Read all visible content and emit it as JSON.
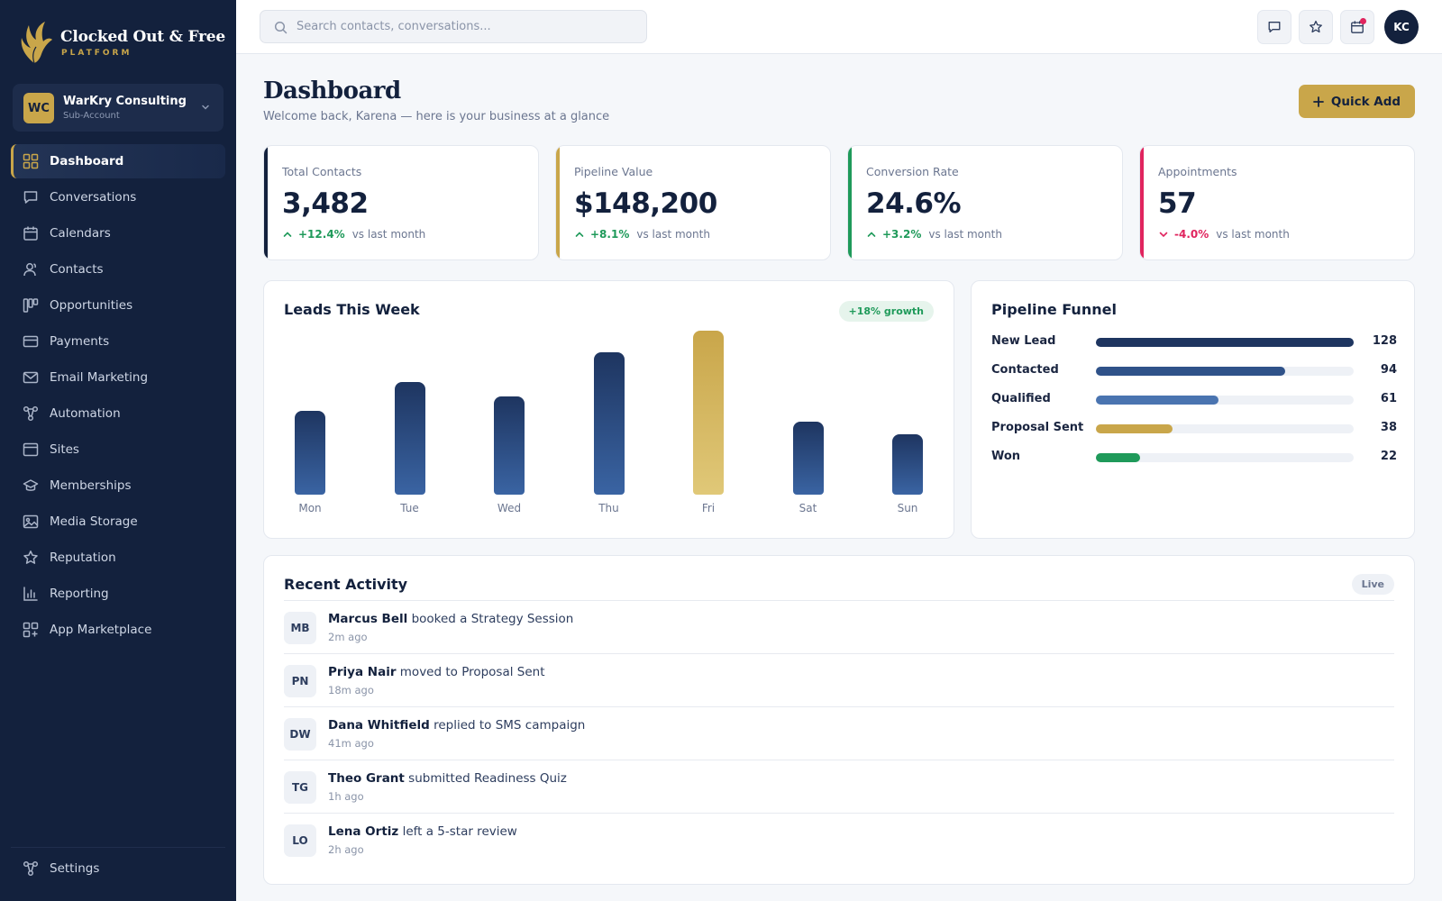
{
  "brand": {
    "name": "Clocked Out & Free",
    "sub": "PLATFORM"
  },
  "account": {
    "initials": "WC",
    "name": "WarKry Consulting",
    "type": "Sub-Account"
  },
  "nav": [
    {
      "label": "Dashboard",
      "icon": "grid-icon",
      "active": true
    },
    {
      "label": "Conversations",
      "icon": "chat-icon"
    },
    {
      "label": "Calendars",
      "icon": "calendar-icon"
    },
    {
      "label": "Contacts",
      "icon": "contacts-icon"
    },
    {
      "label": "Opportunities",
      "icon": "kanban-icon"
    },
    {
      "label": "Payments",
      "icon": "card-icon"
    },
    {
      "label": "Email Marketing",
      "icon": "mail-icon"
    },
    {
      "label": "Automation",
      "icon": "workflow-icon"
    },
    {
      "label": "Sites",
      "icon": "browser-icon"
    },
    {
      "label": "Memberships",
      "icon": "graduation-icon"
    },
    {
      "label": "Media Storage",
      "icon": "image-icon"
    },
    {
      "label": "Reputation",
      "icon": "star-icon"
    },
    {
      "label": "Reporting",
      "icon": "bar-chart-icon"
    },
    {
      "label": "App Marketplace",
      "icon": "apps-icon"
    }
  ],
  "settings": {
    "label": "Settings",
    "icon": "workflow-icon"
  },
  "search": {
    "placeholder": "Search contacts, conversations..."
  },
  "user": {
    "initials": "KC"
  },
  "page": {
    "title": "Dashboard",
    "subtitle": "Welcome back, Karena — here is your business at a glance",
    "quick_add": "Quick Add"
  },
  "stats": [
    {
      "label": "Total Contacts",
      "value": "3,482",
      "delta": "+12.4%",
      "trend": "up",
      "note": "vs last month",
      "color": "#13213d"
    },
    {
      "label": "Pipeline Value",
      "value": "$148,200",
      "delta": "+8.1%",
      "trend": "up",
      "note": "vs last month",
      "color": "#c9a64a"
    },
    {
      "label": "Conversion Rate",
      "value": "24.6%",
      "delta": "+3.2%",
      "trend": "up",
      "note": "vs last month",
      "color": "#1f9a5a"
    },
    {
      "label": "Appointments",
      "value": "57",
      "delta": "-4.0%",
      "trend": "down",
      "note": "vs last month",
      "color": "#e0245e"
    }
  ],
  "leads": {
    "title": "Leads This Week",
    "badge": "+18% growth",
    "highlight": "Fri",
    "colors": {
      "bar": "#2f5289",
      "highlight": "#d3b35d"
    }
  },
  "chart_data": {
    "type": "bar",
    "categories": [
      "Mon",
      "Tue",
      "Wed",
      "Thu",
      "Fri",
      "Sat",
      "Sun"
    ],
    "values": [
      46,
      62,
      54,
      78,
      90,
      40,
      33
    ],
    "ylim": [
      0,
      90
    ],
    "grid": false
  },
  "funnel": {
    "title": "Pipeline Funnel",
    "max": 128,
    "stages": [
      {
        "label": "New Lead",
        "value": 128,
        "color": "#1e3560"
      },
      {
        "label": "Contacted",
        "value": 94,
        "color": "#2f5289"
      },
      {
        "label": "Qualified",
        "value": 61,
        "color": "#4a74b0"
      },
      {
        "label": "Proposal Sent",
        "value": 38,
        "color": "#c9a64a"
      },
      {
        "label": "Won",
        "value": 22,
        "color": "#1f9a5a"
      }
    ]
  },
  "activity": {
    "title": "Recent Activity",
    "badge": "Live",
    "items": [
      {
        "initials": "MB",
        "name": "Marcus Bell",
        "action": "booked a Strategy Session",
        "time": "2m ago"
      },
      {
        "initials": "PN",
        "name": "Priya Nair",
        "action": "moved to Proposal Sent",
        "time": "18m ago"
      },
      {
        "initials": "DW",
        "name": "Dana Whitfield",
        "action": "replied to SMS campaign",
        "time": "41m ago"
      },
      {
        "initials": "TG",
        "name": "Theo Grant",
        "action": "submitted Readiness Quiz",
        "time": "1h ago"
      },
      {
        "initials": "LO",
        "name": "Lena Ortiz",
        "action": "left a 5-star review",
        "time": "2h ago"
      }
    ]
  }
}
